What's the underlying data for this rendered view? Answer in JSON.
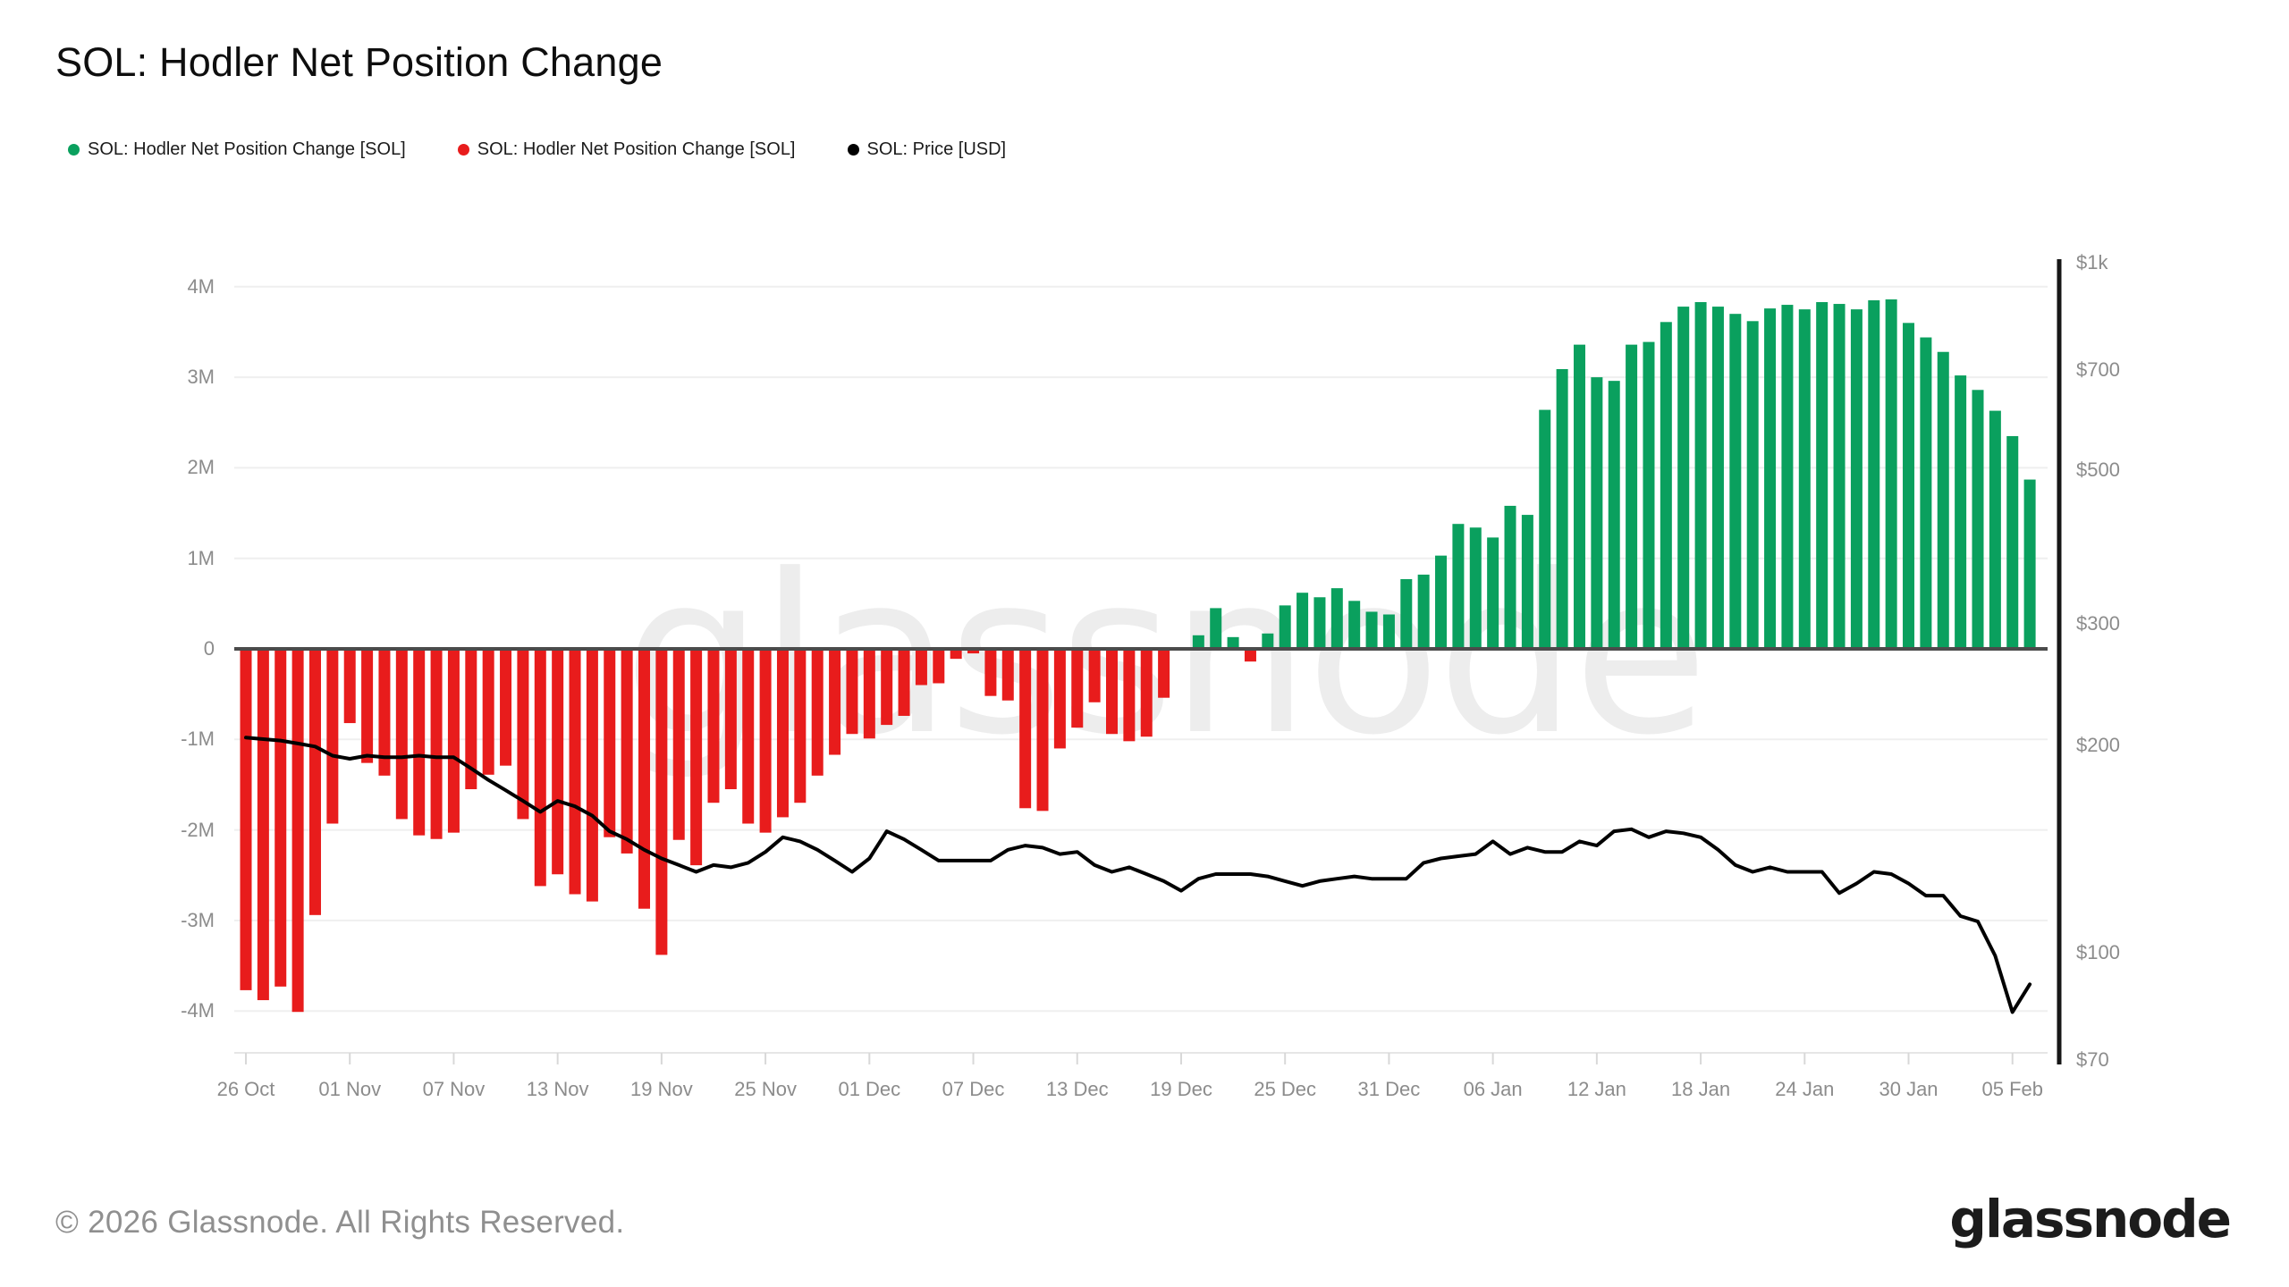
{
  "header": {
    "title": "SOL: Hodler Net Position Change"
  },
  "legend": {
    "items": [
      {
        "label": "SOL: Hodler Net Position Change [SOL]",
        "color": "#0aa05e"
      },
      {
        "label": "SOL: Hodler Net Position Change [SOL]",
        "color": "#e81c1c"
      },
      {
        "label": "SOL: Price [USD]",
        "color": "#000000"
      }
    ]
  },
  "watermark": {
    "text": "glassnode"
  },
  "footer": {
    "copyright": "© 2026 Glassnode. All Rights Reserved.",
    "brand_logo": "glassnode"
  },
  "chart_data": {
    "type": "bar",
    "title": "SOL: Hodler Net Position Change",
    "grid": true,
    "legend_position": "top-left",
    "x_tick_labels": [
      "26 Oct",
      "01 Nov",
      "07 Nov",
      "13 Nov",
      "19 Nov",
      "25 Nov",
      "01 Dec",
      "07 Dec",
      "13 Dec",
      "19 Dec",
      "25 Dec",
      "31 Dec",
      "06 Jan",
      "12 Jan",
      "18 Jan",
      "24 Jan",
      "30 Jan",
      "05 Feb"
    ],
    "x_tick_day_indices": [
      0,
      6,
      12,
      18,
      24,
      30,
      36,
      42,
      48,
      54,
      60,
      66,
      72,
      78,
      84,
      90,
      96,
      102
    ],
    "left_axis": {
      "unit": "SOL net position change (millions)",
      "tick_labels": [
        "4M",
        "3M",
        "2M",
        "1M",
        "0",
        "-1M",
        "-2M",
        "-3M",
        "-4M"
      ],
      "tick_values": [
        4,
        3,
        2,
        1,
        0,
        -1,
        -2,
        -3,
        -4
      ],
      "range": [
        -4.6,
        4.4
      ]
    },
    "right_axis": {
      "unit": "USD",
      "scale": "log",
      "tick_labels": [
        "$1k",
        "$700",
        "$500",
        "$300",
        "$200",
        "$100",
        "$70"
      ],
      "tick_values": [
        1000,
        700,
        500,
        300,
        200,
        100,
        70
      ]
    },
    "series": [
      {
        "name": "SOL: Hodler Net Position Change [SOL]",
        "type": "bar",
        "axis": "left",
        "unit": "M SOL",
        "color_positive": "#0aa05e",
        "color_negative": "#e81c1c",
        "values": [
          -3.77,
          -3.88,
          -3.73,
          -4.01,
          -2.94,
          -1.93,
          -0.82,
          -1.26,
          -1.4,
          -1.88,
          -2.06,
          -2.1,
          -2.03,
          -1.55,
          -1.39,
          -1.29,
          -1.88,
          -2.62,
          -2.49,
          -2.71,
          -2.79,
          -2.08,
          -2.26,
          -2.87,
          -3.38,
          -2.11,
          -2.39,
          -1.7,
          -1.55,
          -1.93,
          -2.03,
          -1.86,
          -1.7,
          -1.4,
          -1.17,
          -0.94,
          -0.99,
          -0.84,
          -0.74,
          -0.4,
          -0.38,
          -0.11,
          -0.05,
          -0.52,
          -0.57,
          -1.76,
          -1.79,
          -1.1,
          -0.87,
          -0.59,
          -0.94,
          -1.02,
          -0.97,
          -0.54,
          0.0,
          0.15,
          0.45,
          0.13,
          -0.14,
          0.17,
          0.48,
          0.62,
          0.57,
          0.67,
          0.53,
          0.41,
          0.38,
          0.77,
          0.82,
          1.03,
          1.38,
          1.34,
          1.23,
          1.58,
          1.48,
          2.64,
          3.09,
          3.36,
          3.0,
          2.96,
          3.36,
          3.39,
          3.61,
          3.78,
          3.83,
          3.78,
          3.7,
          3.62,
          3.76,
          3.8,
          3.75,
          3.83,
          3.81,
          3.75,
          3.85,
          3.86,
          3.6,
          3.44,
          3.28,
          3.02,
          2.86,
          2.63,
          2.35,
          1.87
        ]
      },
      {
        "name": "SOL: Price [USD]",
        "type": "line",
        "axis": "right",
        "unit": "USD",
        "color": "#000000",
        "values": [
          205,
          204,
          203,
          201,
          199,
          193,
          191,
          193,
          192,
          192,
          193,
          192,
          192,
          185,
          178,
          172,
          166,
          160,
          166,
          163,
          158,
          150,
          146,
          141,
          137,
          134,
          131,
          134,
          133,
          135,
          140,
          147,
          145,
          141,
          136,
          131,
          137,
          150,
          146,
          141,
          136,
          136,
          136,
          136,
          141,
          143,
          142,
          139,
          140,
          134,
          131,
          133,
          130,
          127,
          123,
          128,
          130,
          130,
          130,
          129,
          127,
          125,
          127,
          128,
          129,
          128,
          128,
          128,
          135,
          137,
          138,
          139,
          145,
          139,
          142,
          140,
          140,
          145,
          143,
          150,
          151,
          147,
          150,
          149,
          147,
          141,
          134,
          131,
          133,
          131,
          131,
          131,
          122,
          126,
          131,
          130,
          126,
          121,
          121,
          113,
          111,
          99,
          82,
          90
        ]
      }
    ]
  }
}
